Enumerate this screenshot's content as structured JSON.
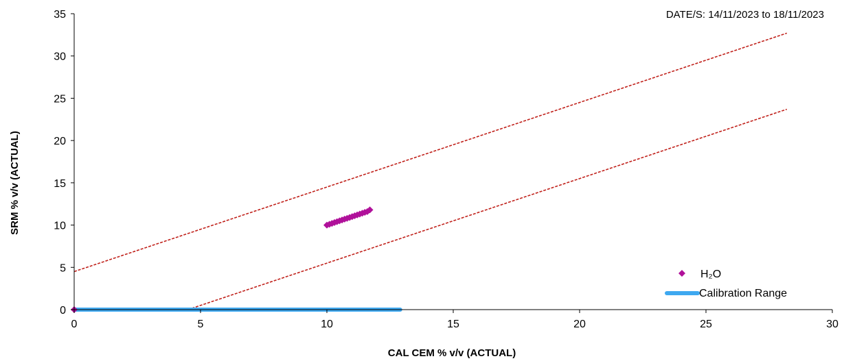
{
  "chart_data": {
    "type": "scatter",
    "date_label": "DATE/S: 14/11/2023 to 18/11/2023",
    "xlabel": "CAL CEM % v/v (ACTUAL)",
    "ylabel": "SRM % v/v  (ACTUAL)",
    "xlim": [
      0,
      30
    ],
    "ylim": [
      0,
      35
    ],
    "x_ticks": [
      "0",
      "5",
      "10",
      "15",
      "20",
      "25",
      "30"
    ],
    "y_ticks": [
      "0",
      "5",
      "10",
      "15",
      "20",
      "25",
      "30",
      "35"
    ],
    "grid": false,
    "legend_position": "bottom-right",
    "series": [
      {
        "name": "H₂O",
        "kind": "scatter",
        "marker": "diamond",
        "color": "#b0119a",
        "points": [
          [
            0,
            0
          ],
          [
            10.0,
            10.0
          ],
          [
            10.1,
            10.1
          ],
          [
            10.2,
            10.2
          ],
          [
            10.3,
            10.3
          ],
          [
            10.4,
            10.4
          ],
          [
            10.5,
            10.5
          ],
          [
            10.6,
            10.6
          ],
          [
            10.7,
            10.7
          ],
          [
            10.8,
            10.8
          ],
          [
            10.9,
            10.9
          ],
          [
            11.0,
            11.0
          ],
          [
            11.1,
            11.1
          ],
          [
            11.2,
            11.2
          ],
          [
            11.3,
            11.3
          ],
          [
            11.4,
            11.4
          ],
          [
            11.5,
            11.5
          ],
          [
            11.6,
            11.6
          ],
          [
            11.7,
            11.8
          ]
        ]
      },
      {
        "name": "Calibration Range",
        "kind": "line",
        "color": "#3ea8f0",
        "points": [
          [
            0,
            0
          ],
          [
            12.9,
            0
          ]
        ]
      }
    ],
    "reference_lines": [
      {
        "kind": "dashed",
        "color": "#c0201a",
        "points": [
          [
            0,
            4.5
          ],
          [
            28.2,
            32.7
          ]
        ]
      },
      {
        "kind": "dashed",
        "color": "#c0201a",
        "points": [
          [
            4.5,
            0
          ],
          [
            28.2,
            23.7
          ]
        ]
      }
    ]
  }
}
